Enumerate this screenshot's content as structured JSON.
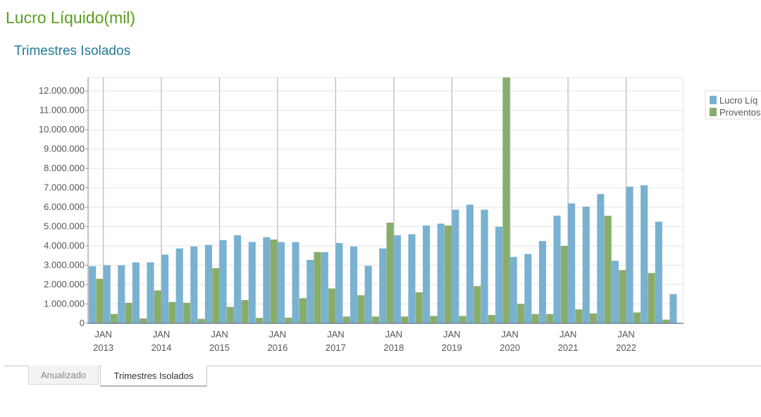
{
  "page": {
    "title": "Lucro Líquido(mil)",
    "subtitle": "Trimestres Isolados"
  },
  "tabs": [
    {
      "label": "Anualizado",
      "active": false
    },
    {
      "label": "Trimestres Isolados",
      "active": true
    }
  ],
  "colors": {
    "title": "#5a9e1e",
    "subtitle": "#237a96",
    "lucro": "#7ab1d1",
    "proventos": "#88ad6b",
    "grid": "#e4e4e4",
    "year_line": "#c4c4c4"
  },
  "chart_data": {
    "type": "bar",
    "ylim": [
      0,
      12700000
    ],
    "yticks": [
      "0",
      "1.000.000",
      "2.000.000",
      "3.000.000",
      "4.000.000",
      "5.000.000",
      "6.000.000",
      "7.000.000",
      "8.000.000",
      "9.000.000",
      "10.000.000",
      "11.000.000",
      "12.000.000"
    ],
    "ytick_values": [
      0,
      1000000,
      2000000,
      3000000,
      4000000,
      5000000,
      6000000,
      7000000,
      8000000,
      9000000,
      10000000,
      11000000,
      12000000
    ],
    "x_tick_month": "JAN",
    "x_tick_years": [
      "2013",
      "2014",
      "2015",
      "2016",
      "2017",
      "2018",
      "2019",
      "2020",
      "2021",
      "2022"
    ],
    "grid": true,
    "legend_position": "top-right",
    "series": [
      {
        "name": "Lucro Líq",
        "color": "#7ab1d1",
        "values": [
          2950000,
          3000000,
          3000000,
          3150000,
          3150000,
          3550000,
          3870000,
          3970000,
          4050000,
          4300000,
          4550000,
          4200000,
          4450000,
          4200000,
          4200000,
          3280000,
          3680000,
          4150000,
          3970000,
          2970000,
          3870000,
          4550000,
          4600000,
          5050000,
          5150000,
          5870000,
          6130000,
          5870000,
          4990000,
          3430000,
          3580000,
          4250000,
          5560000,
          6200000,
          6030000,
          6680000,
          3230000,
          7060000,
          7130000,
          5250000,
          1510000
        ]
      },
      {
        "name": "Proventos",
        "color": "#88ad6b",
        "values": [
          2300000,
          480000,
          1060000,
          250000,
          1700000,
          1100000,
          1060000,
          230000,
          2850000,
          850000,
          1200000,
          280000,
          4330000,
          290000,
          1300000,
          3680000,
          1800000,
          350000,
          1450000,
          350000,
          5200000,
          350000,
          1600000,
          380000,
          5050000,
          380000,
          1920000,
          430000,
          12700000,
          1000000,
          480000,
          480000,
          4000000,
          720000,
          510000,
          5550000,
          2750000,
          560000,
          2600000,
          190000,
          0
        ]
      }
    ]
  }
}
